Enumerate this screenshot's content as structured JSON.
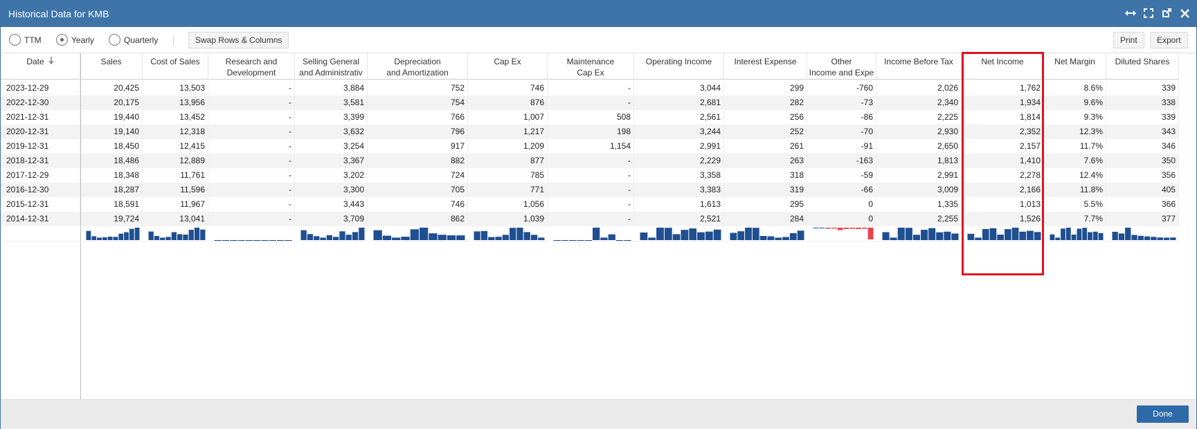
{
  "window": {
    "title": "Historical Data for KMB"
  },
  "toolbar": {
    "ttm_label": "TTM",
    "yearly_label": "Yearly",
    "quarterly_label": "Quarterly",
    "selected": "Yearly",
    "swap_label": "Swap Rows & Columns",
    "print_label": "Print",
    "export_label": "Export"
  },
  "icons": [
    "resize-horizontal-icon",
    "fullscreen-icon",
    "popout-icon",
    "close-icon",
    "sort-down-icon"
  ],
  "columns": [
    {
      "line1": "Date",
      "line2": ""
    },
    {
      "line1": "Sales",
      "line2": ""
    },
    {
      "line1": "Cost of Sales",
      "line2": ""
    },
    {
      "line1": "Research and",
      "line2": "Development"
    },
    {
      "line1": "Selling General",
      "line2": "and Administrativ"
    },
    {
      "line1": "Depreciation",
      "line2": "and Amortization"
    },
    {
      "line1": "Cap Ex",
      "line2": ""
    },
    {
      "line1": "Maintenance",
      "line2": "Cap Ex"
    },
    {
      "line1": "Operating Income",
      "line2": ""
    },
    {
      "line1": "Interest Expense",
      "line2": ""
    },
    {
      "line1": "Other",
      "line2": "Income and Expe"
    },
    {
      "line1": "Income Before Tax",
      "line2": ""
    },
    {
      "line1": "Net Income",
      "line2": ""
    },
    {
      "line1": "Net Margin",
      "line2": ""
    },
    {
      "line1": "Diluted Shares",
      "line2": ""
    }
  ],
  "rows": [
    [
      "2023-12-29",
      "20,425",
      "13,503",
      "-",
      "3,884",
      "752",
      "746",
      "-",
      "3,044",
      "299",
      "-760",
      "2,026",
      "1,762",
      "8.6%",
      "339"
    ],
    [
      "2022-12-30",
      "20,175",
      "13,956",
      "-",
      "3,581",
      "754",
      "876",
      "-",
      "2,681",
      "282",
      "-73",
      "2,340",
      "1,934",
      "9.6%",
      "338"
    ],
    [
      "2021-12-31",
      "19,440",
      "13,452",
      "-",
      "3,399",
      "766",
      "1,007",
      "508",
      "2,561",
      "256",
      "-86",
      "2,225",
      "1,814",
      "9.3%",
      "339"
    ],
    [
      "2020-12-31",
      "19,140",
      "12,318",
      "-",
      "3,632",
      "796",
      "1,217",
      "198",
      "3,244",
      "252",
      "-70",
      "2,930",
      "2,352",
      "12.3%",
      "343"
    ],
    [
      "2019-12-31",
      "18,450",
      "12,415",
      "-",
      "3,254",
      "917",
      "1,209",
      "1,154",
      "2,991",
      "261",
      "-91",
      "2,650",
      "2,157",
      "11.7%",
      "346"
    ],
    [
      "2018-12-31",
      "18,486",
      "12,889",
      "-",
      "3,367",
      "882",
      "877",
      "-",
      "2,229",
      "263",
      "-163",
      "1,813",
      "1,410",
      "7.6%",
      "350"
    ],
    [
      "2017-12-29",
      "18,348",
      "11,761",
      "-",
      "3,202",
      "724",
      "785",
      "-",
      "3,358",
      "318",
      "-59",
      "2,991",
      "2,278",
      "12.4%",
      "356"
    ],
    [
      "2016-12-30",
      "18,287",
      "11,596",
      "-",
      "3,300",
      "705",
      "771",
      "-",
      "3,383",
      "319",
      "-66",
      "3,009",
      "2,166",
      "11.8%",
      "405"
    ],
    [
      "2015-12-31",
      "18,591",
      "11,967",
      "-",
      "3,443",
      "746",
      "1,056",
      "-",
      "1,613",
      "295",
      "0",
      "1,335",
      "1,013",
      "5.5%",
      "366"
    ],
    [
      "2014-12-31",
      "19,724",
      "13,041",
      "-",
      "3,709",
      "862",
      "1,039",
      "-",
      "2,521",
      "284",
      "0",
      "2,255",
      "1,526",
      "7.7%",
      "377"
    ]
  ],
  "highlighted_column": "Net Income",
  "colors": {
    "title_bar": "#3e74a8",
    "spark_bar": "#1f4f91",
    "spark_negative": "#e8434a",
    "highlight": "#e0141e",
    "done": "#2e6aa8"
  },
  "footer": {
    "done_label": "Done"
  }
}
